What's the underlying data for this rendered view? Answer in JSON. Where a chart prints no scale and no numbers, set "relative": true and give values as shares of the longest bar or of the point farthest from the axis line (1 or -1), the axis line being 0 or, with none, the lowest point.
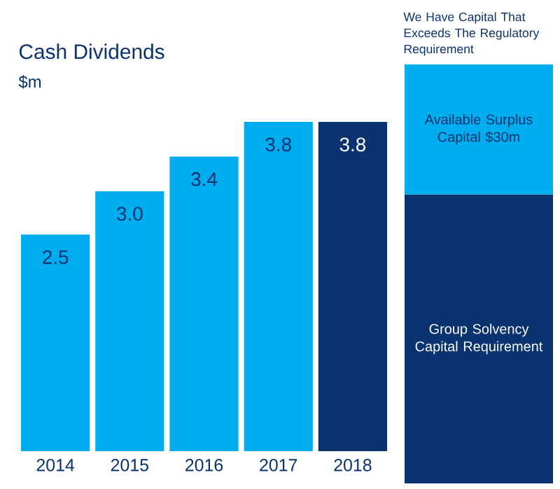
{
  "chart_data": [
    {
      "type": "bar",
      "title": "Cash Dividends",
      "subtitle": "$m",
      "categories": [
        "2014",
        "2015",
        "2016",
        "2017",
        "2018"
      ],
      "values": [
        2.5,
        3.0,
        3.4,
        3.8,
        3.8
      ],
      "colors": [
        "#00aeef",
        "#00aeef",
        "#00aeef",
        "#00aeef",
        "#0a3370"
      ],
      "value_labels": [
        "2.5",
        "3.0",
        "3.4",
        "3.8",
        "3.8"
      ],
      "tick_labels": "x"
    },
    {
      "type": "bar",
      "title": "We Have Capital That Exceeds The Regulatory Requirement",
      "stacked": true,
      "relative": true,
      "categories": [
        null
      ],
      "tick_labels": false,
      "series": [
        {
          "name": "Group Solvency Capital Requirement",
          "color": "#0a3370",
          "values": [
            0.69
          ]
        },
        {
          "name": "Available Surplus Capital $30m",
          "color": "#00aeef",
          "values": [
            0.31
          ]
        }
      ]
    }
  ]
}
